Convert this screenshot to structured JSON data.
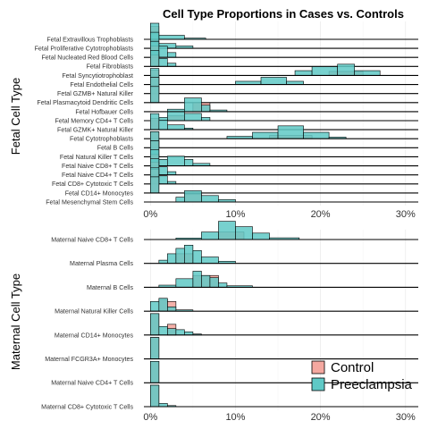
{
  "chart_data": {
    "type": "histogram-ridgeline",
    "title": "Cell Type Proportions in Cases vs. Controls",
    "x_ticks": [
      "0%",
      "10%",
      "20%",
      "30%"
    ],
    "x_tick_values": [
      0,
      10,
      20,
      30
    ],
    "xlim": [
      -1.4,
      31.5
    ],
    "legend": {
      "placement": "bottom-right",
      "entries": [
        {
          "name": "Control",
          "color": "#f4a8a0"
        },
        {
          "name": "Preeclampsia",
          "color": "#5fc9c6"
        }
      ]
    },
    "panels": [
      {
        "ylabel": "Fetal Cell Type",
        "categories": [
          {
            "label": "Fetal Extravillous Trophoblasts",
            "control": [
              [
                0,
                1.0,
                0.8
              ]
            ],
            "preeclampsia": [
              [
                0,
                1.0,
                1.0
              ],
              [
                1,
                4,
                0.25
              ],
              [
                4,
                6.5,
                0.08
              ]
            ]
          },
          {
            "label": "Fetal Proliferative Cytotrophoblasts",
            "control": [
              [
                0,
                1.0,
                0.5
              ]
            ],
            "preeclampsia": [
              [
                0,
                1.0,
                1.0
              ],
              [
                1,
                3,
                0.3
              ],
              [
                3,
                5,
                0.15
              ]
            ]
          },
          {
            "label": "Fetal Nucleated Red Blood Cells",
            "control": [
              [
                0,
                1.0,
                0.7
              ]
            ],
            "preeclampsia": [
              [
                0,
                1.0,
                1.0
              ],
              [
                1,
                2,
                0.7
              ],
              [
                2,
                3,
                0.3
              ]
            ]
          },
          {
            "label": "Fetal Fibroblasts",
            "control": [
              [
                0,
                1.0,
                0.7
              ]
            ],
            "preeclampsia": [
              [
                0,
                1.0,
                1.0
              ],
              [
                1,
                2,
                0.5
              ],
              [
                2,
                3,
                0.2
              ]
            ]
          },
          {
            "label": "Fetal Syncytiotrophoblast",
            "control": [
              [
                21,
                25,
                0.25
              ]
            ],
            "preeclampsia": [
              [
                17,
                19,
                0.3
              ],
              [
                19,
                22,
                0.55
              ],
              [
                22,
                24,
                0.7
              ],
              [
                24,
                27,
                0.3
              ]
            ]
          },
          {
            "label": "Fetal Endothelial Cells",
            "control": [
              [
                0,
                1.0,
                0.9
              ]
            ],
            "preeclampsia": [
              [
                0,
                1.0,
                1.0
              ],
              [
                10,
                13,
                0.2
              ],
              [
                13,
                16,
                0.45
              ],
              [
                16,
                18,
                0.2
              ]
            ]
          },
          {
            "label": "Fetal GZMB+ Natural Killer",
            "control": [
              [
                0,
                1.0,
                1.0
              ]
            ],
            "preeclampsia": [
              [
                0,
                1.0,
                1.0
              ]
            ]
          },
          {
            "label": "Fetal Plasmacytoid Dendritic Cells",
            "control": [
              [
                0,
                1.0,
                1.0
              ]
            ],
            "preeclampsia": [
              [
                0,
                1.0,
                1.0
              ]
            ]
          },
          {
            "label": "Fetal Hofbauer Cells",
            "control": [
              [
                5,
                7,
                0.55
              ]
            ],
            "preeclampsia": [
              [
                2,
                4,
                0.15
              ],
              [
                4,
                6,
                0.85
              ],
              [
                6,
                7,
                0.4
              ],
              [
                7,
                9,
                0.1
              ]
            ]
          },
          {
            "label": "Fetal Memory CD4+ T Cells",
            "control": [
              [
                2,
                4,
                0.3
              ]
            ],
            "preeclampsia": [
              [
                1,
                2,
                0.2
              ],
              [
                2,
                4,
                0.55
              ],
              [
                4,
                6,
                0.45
              ],
              [
                6,
                7,
                0.2
              ]
            ]
          },
          {
            "label": "Fetal GZMK+ Natural Killer",
            "control": [
              [
                0,
                1.0,
                0.7
              ]
            ],
            "preeclampsia": [
              [
                0,
                1.0,
                1.0
              ],
              [
                1,
                2,
                0.6
              ],
              [
                2,
                4,
                0.3
              ],
              [
                4,
                5,
                0.1
              ]
            ]
          },
          {
            "label": "Fetal Cytotrophoblasts",
            "control": [
              [
                14,
                19,
                0.2
              ]
            ],
            "preeclampsia": [
              [
                9,
                12,
                0.15
              ],
              [
                12,
                15,
                0.4
              ],
              [
                15,
                18,
                0.8
              ],
              [
                18,
                21,
                0.4
              ],
              [
                21,
                23,
                0.1
              ]
            ]
          },
          {
            "label": "Fetal B Cells",
            "control": [
              [
                0,
                1.0,
                1.0
              ]
            ],
            "preeclampsia": [
              [
                0,
                1.0,
                1.0
              ]
            ]
          },
          {
            "label": "Fetal Natural Killer T Cells",
            "control": [
              [
                0,
                1.0,
                1.0
              ]
            ],
            "preeclampsia": [
              [
                0,
                1.0,
                1.0
              ]
            ]
          },
          {
            "label": "Fetal Naive CD8+ T Cells",
            "control": [
              [
                0,
                1.0,
                0.7
              ]
            ],
            "preeclampsia": [
              [
                0,
                1.0,
                1.0
              ],
              [
                1,
                2,
                0.4
              ],
              [
                2,
                4,
                0.6
              ],
              [
                4,
                5,
                0.4
              ],
              [
                5,
                7,
                0.15
              ]
            ]
          },
          {
            "label": "Fetal Naive CD4+ T Cells",
            "control": [
              [
                0,
                1.0,
                0.8
              ]
            ],
            "preeclampsia": [
              [
                0,
                1.0,
                1.0
              ],
              [
                1,
                2,
                0.5
              ],
              [
                2,
                3,
                0.2
              ]
            ]
          },
          {
            "label": "Fetal CD8+ Cytotoxic T Cells",
            "control": [
              [
                0,
                1.0,
                0.9
              ]
            ],
            "preeclampsia": [
              [
                0,
                1.0,
                1.0
              ],
              [
                1,
                2,
                0.5
              ],
              [
                2,
                3,
                0.15
              ]
            ]
          },
          {
            "label": "Fetal CD14+ Monocytes",
            "control": [
              [
                0,
                1.0,
                1.0
              ]
            ],
            "preeclampsia": [
              [
                0,
                1.0,
                1.0
              ]
            ]
          },
          {
            "label": "Fetal Mesenchymal Stem Cells",
            "control": [
              [
                4,
                6,
                0.5
              ]
            ],
            "preeclampsia": [
              [
                3,
                4,
                0.3
              ],
              [
                4,
                6,
                0.7
              ],
              [
                6,
                8,
                0.4
              ],
              [
                8,
                10,
                0.15
              ]
            ]
          }
        ]
      },
      {
        "ylabel": "Maternal Cell Type",
        "categories": [
          {
            "label": "Maternal Naive CD8+ T Cells",
            "control": [
              [
                8,
                11,
                0.35
              ]
            ],
            "preeclampsia": [
              [
                3,
                6,
                0.07
              ],
              [
                6,
                8,
                0.35
              ],
              [
                8,
                10,
                0.85
              ],
              [
                10,
                12,
                0.6
              ],
              [
                12,
                14,
                0.3
              ],
              [
                14,
                17.5,
                0.08
              ]
            ]
          },
          {
            "label": "Maternal Plasma Cells",
            "control": [
              [
                3,
                5,
                0.45
              ]
            ],
            "preeclampsia": [
              [
                1,
                2,
                0.15
              ],
              [
                2,
                3,
                0.45
              ],
              [
                3,
                4,
                0.7
              ],
              [
                4,
                5,
                0.85
              ],
              [
                5,
                6,
                0.6
              ],
              [
                6,
                8,
                0.3
              ],
              [
                8,
                10,
                0.1
              ]
            ]
          },
          {
            "label": "Maternal B Cells",
            "control": [
              [
                5,
                8,
                0.55
              ]
            ],
            "preeclampsia": [
              [
                1,
                3,
                0.1
              ],
              [
                3,
                5,
                0.4
              ],
              [
                5,
                6,
                0.75
              ],
              [
                6,
                7,
                0.55
              ],
              [
                7,
                8,
                0.45
              ],
              [
                8,
                9,
                0.2
              ],
              [
                9,
                12,
                0.07
              ]
            ]
          },
          {
            "label": "Maternal Natural Killer Cells",
            "control": [
              [
                1,
                2,
                0.55
              ],
              [
                2,
                3,
                0.45
              ]
            ],
            "preeclampsia": [
              [
                0,
                1,
                0.45
              ],
              [
                1,
                2,
                0.6
              ],
              [
                2,
                3,
                0.2
              ],
              [
                3,
                5,
                0.06
              ]
            ]
          },
          {
            "label": "Maternal CD14+ Monocytes",
            "control": [
              [
                0,
                1,
                1.0
              ],
              [
                2,
                3,
                0.5
              ]
            ],
            "preeclampsia": [
              [
                0,
                1,
                1.0
              ],
              [
                1,
                2,
                0.4
              ],
              [
                2,
                3,
                0.3
              ],
              [
                3,
                4,
                0.25
              ],
              [
                4,
                5,
                0.15
              ],
              [
                5,
                6,
                0.05
              ]
            ]
          },
          {
            "label": "Maternal FCGR3A+ Monocytes",
            "control": [
              [
                0,
                1,
                1.0
              ]
            ],
            "preeclampsia": [
              [
                0,
                1,
                1.0
              ]
            ]
          },
          {
            "label": "Maternal Naive CD4+ T Cells",
            "control": [
              [
                0,
                1,
                1.0
              ]
            ],
            "preeclampsia": [
              [
                0,
                1,
                1.0
              ]
            ]
          },
          {
            "label": "Maternal CD8+ Cytotoxic T Cells",
            "control": [
              [
                0,
                1,
                1.0
              ]
            ],
            "preeclampsia": [
              [
                0,
                1,
                1.0
              ],
              [
                1,
                2,
                0.15
              ],
              [
                2,
                3,
                0.05
              ]
            ]
          }
        ]
      }
    ]
  }
}
